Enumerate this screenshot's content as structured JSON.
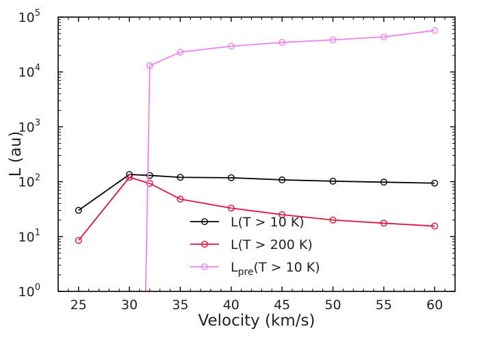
{
  "chart_data": {
    "type": "line",
    "title": "",
    "xlabel": "Velocity (km/s)",
    "ylabel": "L (au)",
    "xlim": [
      23,
      62
    ],
    "ylim": [
      1,
      100000
    ],
    "yscale": "log",
    "grid": false,
    "legend_position": "lower-center",
    "x_ticks": [
      "25",
      "30",
      "35",
      "40",
      "45",
      "50",
      "55",
      "60"
    ],
    "y_ticks": [
      {
        "value": 1,
        "base": "10",
        "exp": "0"
      },
      {
        "value": 10,
        "base": "10",
        "exp": "1"
      },
      {
        "value": 100,
        "base": "10",
        "exp": "2"
      },
      {
        "value": 1000,
        "base": "10",
        "exp": "3"
      },
      {
        "value": 10000,
        "base": "10",
        "exp": "4"
      },
      {
        "value": 100000,
        "base": "10",
        "exp": "5"
      }
    ],
    "series": [
      {
        "name": "L(T > 10 K)",
        "legend": {
          "base": "L(T > 10 K)",
          "sub": "",
          "rest": ""
        },
        "color": "#000000",
        "x": [
          25,
          30,
          32,
          35,
          40,
          45,
          50,
          55,
          60
        ],
        "y": [
          30,
          135,
          130,
          120,
          118,
          108,
          102,
          98,
          94
        ]
      },
      {
        "name": "L(T > 200 K)",
        "legend": {
          "base": "L(T > 200 K)",
          "sub": "",
          "rest": ""
        },
        "color": "#dc143c",
        "x": [
          25,
          30,
          32,
          35,
          40,
          45,
          50,
          55,
          60
        ],
        "y": [
          8.5,
          120,
          93,
          48,
          33,
          25,
          20,
          17.5,
          15.5
        ]
      },
      {
        "name": "L_pre(T > 10 K)",
        "legend": {
          "base": "L",
          "sub": "pre",
          "rest": "(T > 10 K)"
        },
        "color": "#ee82ee",
        "x": [
          31.6,
          32,
          35,
          40,
          45,
          50,
          55,
          60
        ],
        "y": [
          1,
          13000,
          23000,
          29500,
          34500,
          38500,
          43500,
          57000
        ],
        "marker_from_index": 1
      }
    ]
  }
}
